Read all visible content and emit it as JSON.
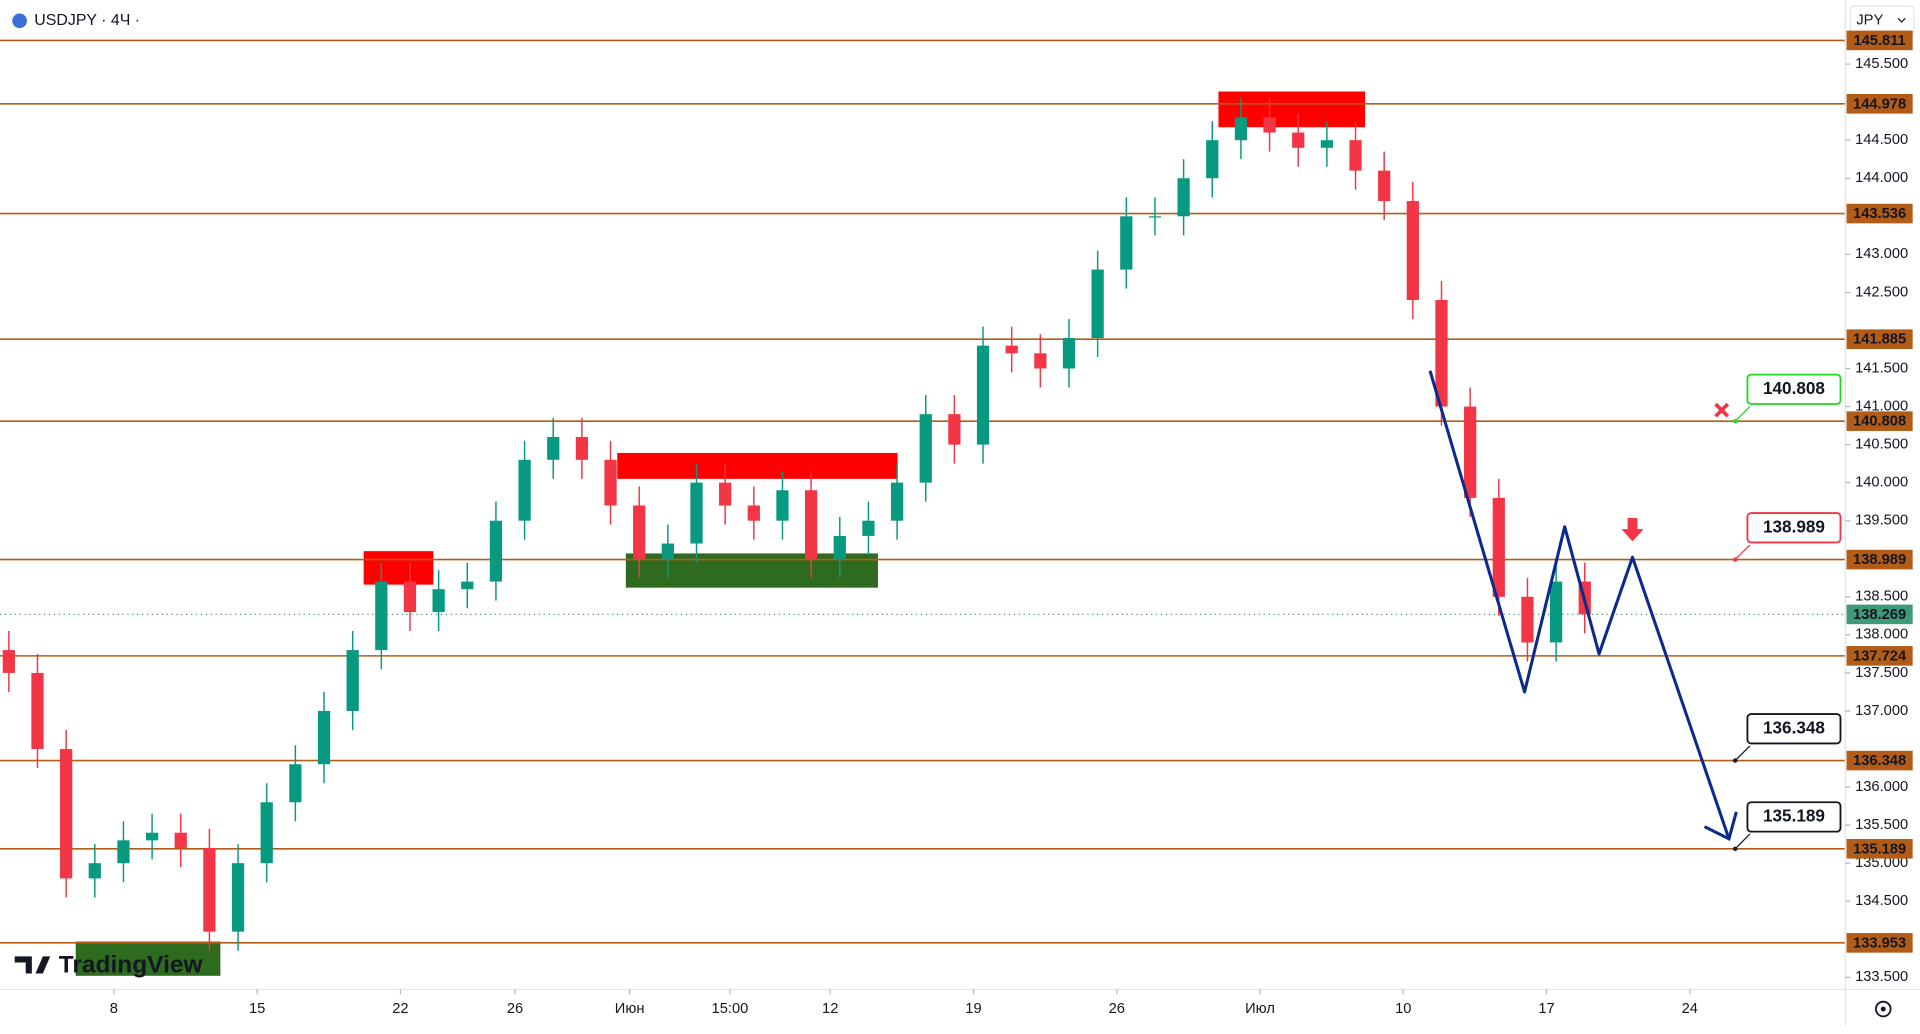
{
  "chart_data": {
    "type": "candlestick",
    "symbol": "USDJPY · 4Ч ·",
    "currency": "JPY",
    "watermark": "TradingView",
    "x": [
      -22,
      -16,
      -10,
      -4,
      2,
      8,
      14,
      20,
      26,
      32,
      38,
      44,
      50,
      56,
      62,
      68,
      74,
      80,
      86,
      92,
      98,
      104,
      110,
      116,
      122,
      128,
      134,
      140,
      146,
      152,
      158,
      164,
      170,
      176,
      182,
      188,
      194,
      200,
      206,
      212,
      218,
      224,
      230,
      236,
      242,
      248,
      254,
      260,
      266,
      272,
      278,
      284,
      290,
      296,
      302,
      308
    ],
    "open": [
      137.8,
      137.5,
      136.5,
      134.8,
      135.0,
      135.3,
      135.4,
      135.2,
      134.1,
      135.0,
      135.8,
      136.3,
      137.0,
      137.8,
      138.7,
      138.3,
      138.6,
      138.7,
      139.5,
      140.3,
      140.6,
      140.3,
      139.7,
      139.0,
      139.2,
      140.0,
      139.7,
      139.5,
      139.9,
      139.0,
      139.3,
      139.5,
      140.0,
      140.9,
      140.5,
      141.8,
      141.7,
      141.5,
      141.9,
      142.8,
      143.5,
      143.5,
      144.0,
      144.5,
      144.8,
      144.6,
      144.4,
      144.5,
      144.1,
      143.7,
      142.4,
      141.0,
      139.8,
      138.5,
      137.9,
      138.7
    ],
    "high": [
      138.05,
      137.75,
      136.75,
      135.25,
      135.55,
      135.65,
      135.65,
      135.45,
      135.25,
      136.05,
      136.55,
      137.25,
      138.05,
      138.95,
      138.95,
      138.85,
      138.95,
      139.75,
      140.55,
      140.85,
      140.85,
      140.55,
      139.95,
      139.45,
      140.25,
      140.25,
      139.95,
      140.15,
      140.15,
      139.55,
      139.75,
      140.25,
      141.15,
      141.15,
      142.05,
      142.05,
      141.95,
      142.15,
      143.05,
      143.75,
      143.75,
      144.25,
      144.75,
      145.05,
      145.05,
      144.85,
      144.75,
      144.75,
      144.35,
      143.95,
      142.65,
      141.25,
      140.05,
      138.75,
      138.95,
      138.95
    ],
    "low": [
      137.25,
      136.25,
      134.55,
      134.55,
      134.75,
      135.05,
      134.95,
      133.85,
      133.85,
      134.75,
      135.55,
      136.05,
      136.75,
      137.55,
      138.05,
      138.05,
      138.35,
      138.45,
      139.25,
      140.05,
      140.05,
      139.45,
      138.75,
      138.75,
      138.95,
      139.45,
      139.25,
      139.25,
      138.75,
      138.75,
      139.05,
      139.25,
      139.75,
      140.25,
      140.25,
      141.45,
      141.25,
      141.25,
      141.65,
      142.55,
      143.25,
      143.25,
      143.75,
      144.25,
      144.35,
      144.15,
      144.15,
      143.85,
      143.45,
      142.15,
      140.75,
      139.55,
      138.25,
      137.65,
      137.65,
      138.02
    ],
    "close": [
      137.5,
      136.5,
      134.8,
      135.0,
      135.3,
      135.4,
      135.2,
      134.1,
      135.0,
      135.8,
      136.3,
      137.0,
      137.8,
      138.7,
      138.3,
      138.6,
      138.7,
      139.5,
      140.3,
      140.6,
      140.3,
      139.7,
      139.0,
      139.2,
      140.0,
      139.7,
      139.5,
      139.9,
      139.0,
      139.3,
      139.5,
      140.0,
      140.9,
      140.5,
      141.8,
      141.7,
      141.5,
      141.9,
      142.8,
      143.5,
      143.5,
      144.0,
      144.5,
      144.8,
      144.6,
      144.4,
      144.5,
      144.1,
      143.7,
      142.4,
      141.0,
      139.8,
      138.5,
      137.9,
      138.7,
      138.27
    ],
    "up_color": "#089981",
    "down_color": "#f23645",
    "xlim": [
      -23.85,
      362.56
    ],
    "ylim": [
      133.341,
      146.342
    ],
    "xticks": [
      {
        "value": 0,
        "label": "8"
      },
      {
        "value": 30,
        "label": "15"
      },
      {
        "value": 60,
        "label": "22"
      },
      {
        "value": 84,
        "label": "26"
      },
      {
        "value": 108,
        "label": "Июн"
      },
      {
        "value": 129,
        "label": "15:00"
      },
      {
        "value": 150,
        "label": "12"
      },
      {
        "value": 180,
        "label": "19"
      },
      {
        "value": 210,
        "label": "26"
      },
      {
        "value": 240,
        "label": "Июл"
      },
      {
        "value": 270,
        "label": "10"
      },
      {
        "value": 300,
        "label": "17"
      },
      {
        "value": 330,
        "label": "24"
      }
    ],
    "yticks": [
      {
        "value": 145.5,
        "label": "145.500"
      },
      {
        "value": 144.5,
        "label": "144.500"
      },
      {
        "value": 144.0,
        "label": "144.000"
      },
      {
        "value": 143.0,
        "label": "143.000"
      },
      {
        "value": 142.5,
        "label": "142.500"
      },
      {
        "value": 141.5,
        "label": "141.500"
      },
      {
        "value": 141.0,
        "label": "141.000"
      },
      {
        "value": 140.5,
        "label": "140.500"
      },
      {
        "value": 140.0,
        "label": "140.000"
      },
      {
        "value": 139.5,
        "label": "139.500"
      },
      {
        "value": 138.5,
        "label": "138.500"
      },
      {
        "value": 138.0,
        "label": "138.000"
      },
      {
        "value": 137.5,
        "label": "137.500"
      },
      {
        "value": 137.0,
        "label": "137.000"
      },
      {
        "value": 136.0,
        "label": "136.000"
      },
      {
        "value": 135.5,
        "label": "135.500"
      },
      {
        "value": 135.0,
        "label": "135.000"
      },
      {
        "value": 134.5,
        "label": "134.500"
      },
      {
        "value": 133.5,
        "label": "133.500"
      }
    ],
    "levels": {
      "color": "#b35c17",
      "values": [
        145.811,
        144.978,
        143.536,
        141.885,
        140.808,
        138.989,
        137.724,
        136.348,
        135.189,
        133.953
      ]
    },
    "last_price": {
      "value": 138.269,
      "color": "#3f9a78"
    },
    "zones": [
      {
        "x": [
          52.3,
          66.9
        ],
        "y": [
          138.66,
          139.1
        ],
        "color": "#ff0000"
      },
      {
        "x": [
          105.4,
          164.1
        ],
        "y": [
          140.05,
          140.39
        ],
        "color": "#ff0000"
      },
      {
        "x": [
          107.2,
          160
        ],
        "y": [
          138.62,
          139.07
        ],
        "color": "#2e6b1f"
      },
      {
        "x": [
          231.3,
          262
        ],
        "y": [
          144.67,
          145.14
        ],
        "color": "#ff0000"
      },
      {
        "x": [
          -8,
          22.3
        ],
        "y": [
          133.52,
          133.97
        ],
        "color": "#2e6b1f"
      }
    ],
    "projection": {
      "color": "#0c2a8e",
      "x": [
        275.6,
        295.4,
        303.8,
        311,
        318,
        338.2
      ],
      "values": [
        141.47,
        137.25,
        139.42,
        137.75,
        139.02,
        135.32
      ]
    },
    "annotations": [
      {
        "x": 339.5,
        "value": 140.808,
        "color": "#1fd81f"
      },
      {
        "x": 339.5,
        "value": 138.989,
        "color": "#f23645"
      },
      {
        "x": 339.5,
        "value": 136.348,
        "color": "#131722"
      },
      {
        "x": 339.5,
        "value": 135.189,
        "color": "#131722"
      }
    ]
  }
}
